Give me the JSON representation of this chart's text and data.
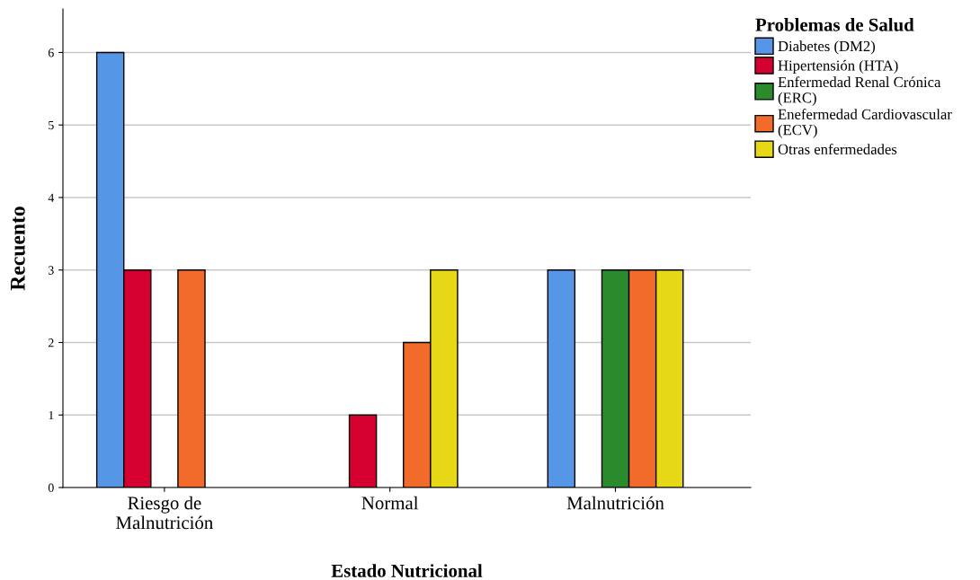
{
  "chart_data": {
    "type": "bar",
    "xlabel": "Estado Nutricional",
    "ylabel": "Recuento",
    "legend_title": "Problemas de Salud",
    "categories": [
      "Riesgo de Malnutrición",
      "Normal",
      "Malnutrición"
    ],
    "series": [
      {
        "name": "Diabetes (DM2)",
        "color": "#5596e6",
        "values": [
          6,
          null,
          3
        ]
      },
      {
        "name": "Hipertensión (HTA)",
        "color": "#d5002f",
        "values": [
          3,
          1,
          null
        ]
      },
      {
        "name": "Enfermedad Renal Crónica (ERC)",
        "color": "#2b8a2b",
        "values": [
          null,
          null,
          3
        ]
      },
      {
        "name": "Enefermedad Cardiovascular (ECV)",
        "color": "#f26b2a",
        "values": [
          3,
          2,
          3
        ]
      },
      {
        "name": "Otras enfermedades",
        "color": "#e6d817",
        "values": [
          null,
          3,
          3
        ]
      }
    ],
    "ylim": [
      0,
      6.6
    ],
    "yticks": [
      0,
      1,
      2,
      3,
      4,
      5,
      6
    ],
    "grid": "y",
    "legend": "top right"
  }
}
